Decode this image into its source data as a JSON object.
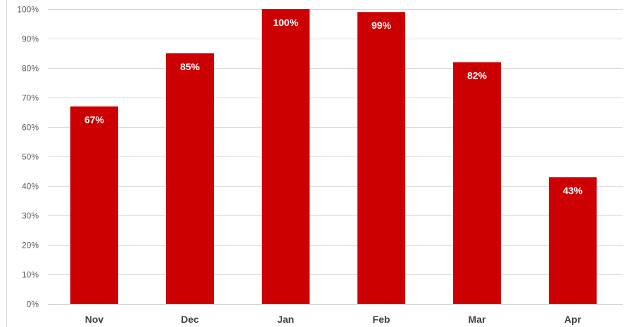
{
  "chart_data": {
    "type": "bar",
    "title": "",
    "xlabel": "",
    "ylabel": "",
    "categories": [
      "Nov",
      "Dec",
      "Jan",
      "Feb",
      "Mar",
      "Apr"
    ],
    "values": [
      67,
      85,
      100,
      99,
      82,
      43
    ],
    "data_labels": [
      "67%",
      "85%",
      "100%",
      "99%",
      "82%",
      "43%"
    ],
    "ylim": [
      0,
      100
    ],
    "y_tick_labels": [
      "0%",
      "10%",
      "20%",
      "30%",
      "40%",
      "50%",
      "60%",
      "70%",
      "80%",
      "90%",
      "100%"
    ],
    "grid": true,
    "legend": "none",
    "bar_color": "#cc0000",
    "grid_color": "#d9d9d9",
    "axis_color": "#bfbfbf"
  }
}
